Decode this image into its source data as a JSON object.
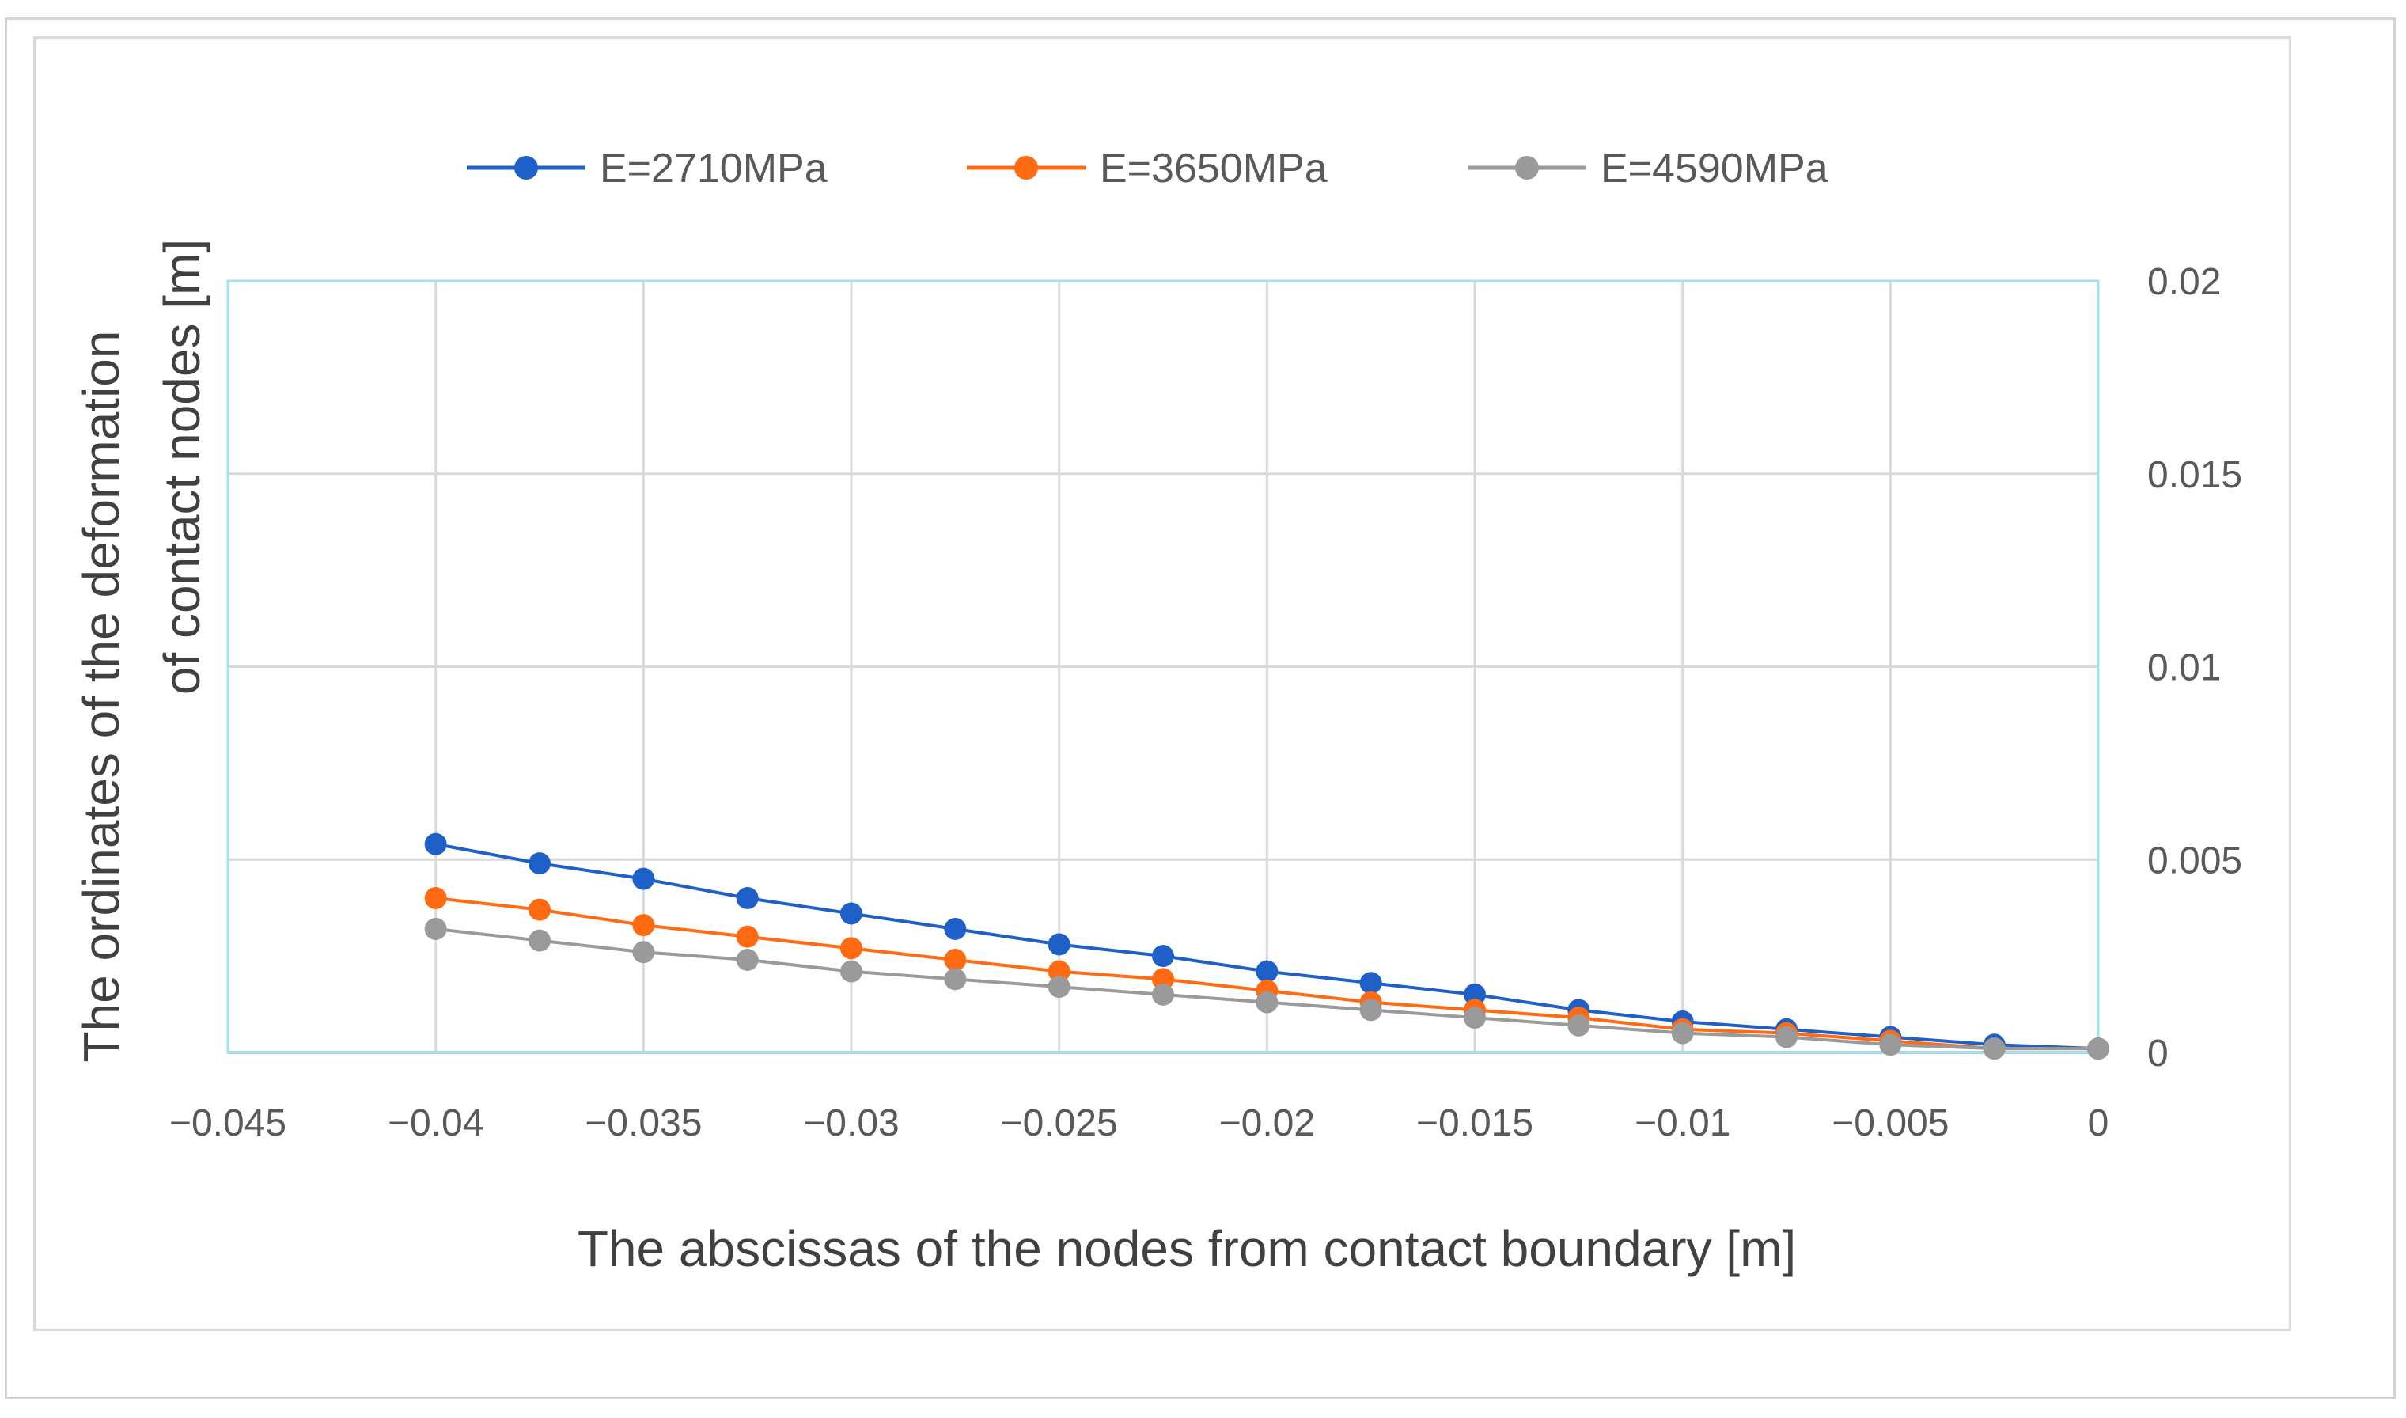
{
  "chart_data": {
    "type": "line",
    "title": "",
    "xlabel": "The abscissas of the nodes from contact boundary [m]",
    "ylabel_line1": "The ordinates of the deformation",
    "ylabel_line2": "of contact nodes [m]",
    "xlim": [
      -0.045,
      0
    ],
    "ylim": [
      0,
      0.02
    ],
    "xticks": [
      -0.045,
      -0.04,
      -0.035,
      -0.03,
      -0.025,
      -0.02,
      -0.015,
      -0.01,
      -0.005,
      0
    ],
    "xtick_labels": [
      "−0.045",
      "−0.04",
      "−0.035",
      "−0.03",
      "−0.025",
      "−0.02",
      "−0.015",
      "−0.01",
      "−0.005",
      "0"
    ],
    "yticks": [
      0,
      0.005,
      0.01,
      0.015,
      0.02
    ],
    "ytick_labels": [
      "0",
      "0.005",
      "0.01",
      "0.015",
      "0.02"
    ],
    "yaxis_side": "right",
    "grid": true,
    "legend_position": "top",
    "x": [
      -0.04,
      -0.0375,
      -0.035,
      -0.0325,
      -0.03,
      -0.0275,
      -0.025,
      -0.0225,
      -0.02,
      -0.0175,
      -0.015,
      -0.0125,
      -0.01,
      -0.0075,
      -0.005,
      -0.0025,
      0
    ],
    "series": [
      {
        "name": "E=2710MPa",
        "color": "#1f5fc8",
        "values": [
          0.0054,
          0.0049,
          0.0045,
          0.004,
          0.0036,
          0.0032,
          0.0028,
          0.0025,
          0.0021,
          0.0018,
          0.0015,
          0.0011,
          0.0008,
          0.0006,
          0.0004,
          0.0002,
          0.0001
        ]
      },
      {
        "name": "E=3650MPa",
        "color": "#ff6a13",
        "values": [
          0.004,
          0.0037,
          0.0033,
          0.003,
          0.0027,
          0.0024,
          0.0021,
          0.0019,
          0.0016,
          0.0013,
          0.0011,
          0.0009,
          0.0006,
          0.0005,
          0.0003,
          0.0001,
          0.0001
        ]
      },
      {
        "name": "E=4590MPa",
        "color": "#9a9a9a",
        "values": [
          0.0032,
          0.0029,
          0.0026,
          0.0024,
          0.0021,
          0.0019,
          0.0017,
          0.0015,
          0.0013,
          0.0011,
          0.0009,
          0.0007,
          0.0005,
          0.0004,
          0.0002,
          0.0001,
          0.0001
        ]
      }
    ]
  }
}
